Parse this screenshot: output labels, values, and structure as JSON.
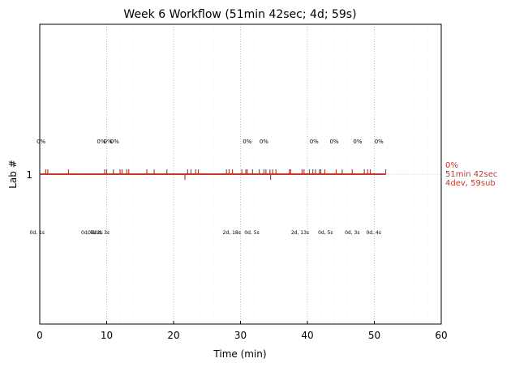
{
  "chart_data": {
    "type": "line",
    "title": "Week 6 Workflow (51min 42sec; 4d; 59s)",
    "xlabel": "Time (min)",
    "ylabel": "Lab #",
    "xlim": [
      0,
      60
    ],
    "x_ticks": [
      0,
      10,
      20,
      30,
      40,
      50,
      60
    ],
    "y_ticks": [
      1
    ],
    "grid": {
      "major_x": true,
      "minor_x": true
    },
    "series": [
      {
        "lab": 1,
        "color": "#c0392b",
        "x_range": [
          0,
          51.7
        ],
        "up_ticks": [
          0.9,
          1.2,
          4.3,
          9.7,
          10.0,
          11.0,
          12.0,
          12.3,
          13.0,
          13.3,
          16.0,
          17.1,
          19.0,
          22.1,
          22.6,
          23.3,
          23.7,
          27.9,
          28.3,
          28.8,
          30.2,
          30.8,
          31.0,
          31.8,
          32.8,
          33.5,
          33.8,
          34.4,
          34.8,
          35.3,
          37.3,
          37.5,
          39.2,
          39.5,
          40.3,
          40.8,
          41.2,
          41.8,
          42.0,
          42.6,
          44.3,
          45.2,
          46.7,
          48.5,
          49.0,
          49.4,
          51.7
        ],
        "down_ticks": [
          21.7,
          34.5
        ]
      }
    ],
    "top_annotations": [
      {
        "x": 0.2,
        "text": "0%"
      },
      {
        "x": 9.2,
        "text": "0%"
      },
      {
        "x": 10.2,
        "text": "0%"
      },
      {
        "x": 11.2,
        "text": "0%"
      },
      {
        "x": 31.0,
        "text": "0%"
      },
      {
        "x": 33.5,
        "text": "0%"
      },
      {
        "x": 41.0,
        "text": "0%"
      },
      {
        "x": 44.0,
        "text": "0%"
      },
      {
        "x": 47.5,
        "text": "0%"
      },
      {
        "x": 50.7,
        "text": "0%"
      }
    ],
    "bottom_annotations": [
      {
        "x": -0.4,
        "text": "0d, 1s"
      },
      {
        "x": 7.3,
        "text": "0d, 5s"
      },
      {
        "x": 8.3,
        "text": "0d, 2s"
      },
      {
        "x": 9.3,
        "text": "0d, 3s"
      },
      {
        "x": 28.7,
        "text": "2d, 18s"
      },
      {
        "x": 31.7,
        "text": "0d, 5s"
      },
      {
        "x": 38.9,
        "text": "2d, 13s"
      },
      {
        "x": 42.7,
        "text": "0d, 5s"
      },
      {
        "x": 46.7,
        "text": "0d, 3s"
      },
      {
        "x": 49.9,
        "text": "0d, 4s"
      }
    ],
    "right_note": [
      "0%",
      "51min 42sec",
      "4dev, 59sub"
    ]
  }
}
